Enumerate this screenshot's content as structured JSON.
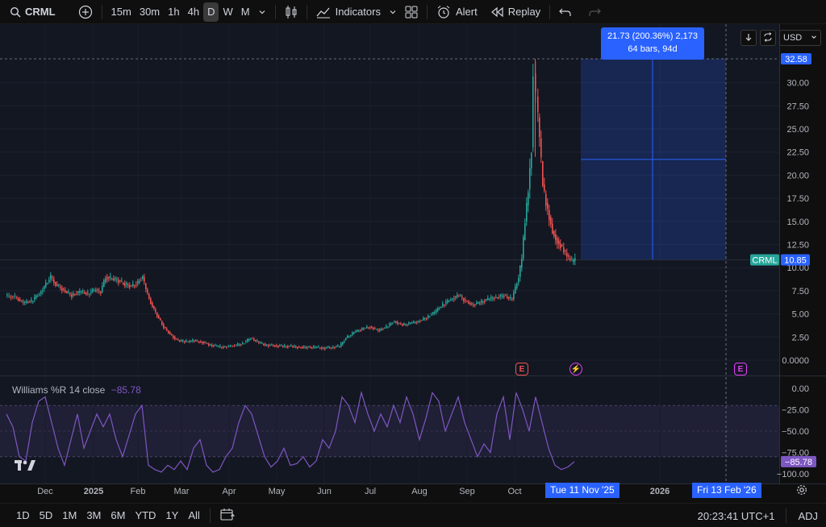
{
  "toolbar": {
    "symbol": "CRML",
    "intervals": [
      "15m",
      "30m",
      "1h",
      "4h",
      "D",
      "W",
      "M"
    ],
    "active_interval": "D",
    "indicators_label": "Indicators",
    "alert_label": "Alert",
    "replay_label": "Replay"
  },
  "chart": {
    "currency": "USD",
    "price_axis_ticks": [
      "30.00",
      "27.50",
      "25.00",
      "22.50",
      "20.00",
      "17.50",
      "15.00",
      "12.50",
      "10.00",
      "7.50",
      "5.00",
      "2.50",
      "0.0000"
    ],
    "price_high_label": "32.58",
    "last_price_label": "10.85",
    "last_price_symbol": "CRML",
    "measure_tooltip": {
      "line1": "21.73 (200.36%) 2,173",
      "line2": "64 bars, 94d"
    },
    "time_axis_ticks": [
      "Dec",
      "2025",
      "Feb",
      "Mar",
      "Apr",
      "May",
      "Jun",
      "Jul",
      "Aug",
      "Sep",
      "Oct",
      "2026"
    ],
    "time_pill_start": "Tue 11 Nov '25",
    "time_pill_end": "Fri 13 Feb '26",
    "event_labels": [
      "E",
      "E"
    ]
  },
  "oscillator": {
    "name": "Williams %R 14 close",
    "value": "−85.78",
    "axis_ticks": [
      "0.00",
      "−25.00",
      "−50.00",
      "−75.00",
      "−100.00"
    ],
    "value_pill": "−85.78"
  },
  "bottom_bar": {
    "ranges": [
      "1D",
      "5D",
      "1M",
      "3M",
      "6M",
      "YTD",
      "1Y",
      "All"
    ],
    "clock": "20:23:41 UTC+1",
    "adj_label": "ADJ"
  },
  "colors": {
    "up": "#26a69a",
    "down": "#ef5350",
    "oscillator": "#7e57c2",
    "accent": "#2962ff"
  }
}
